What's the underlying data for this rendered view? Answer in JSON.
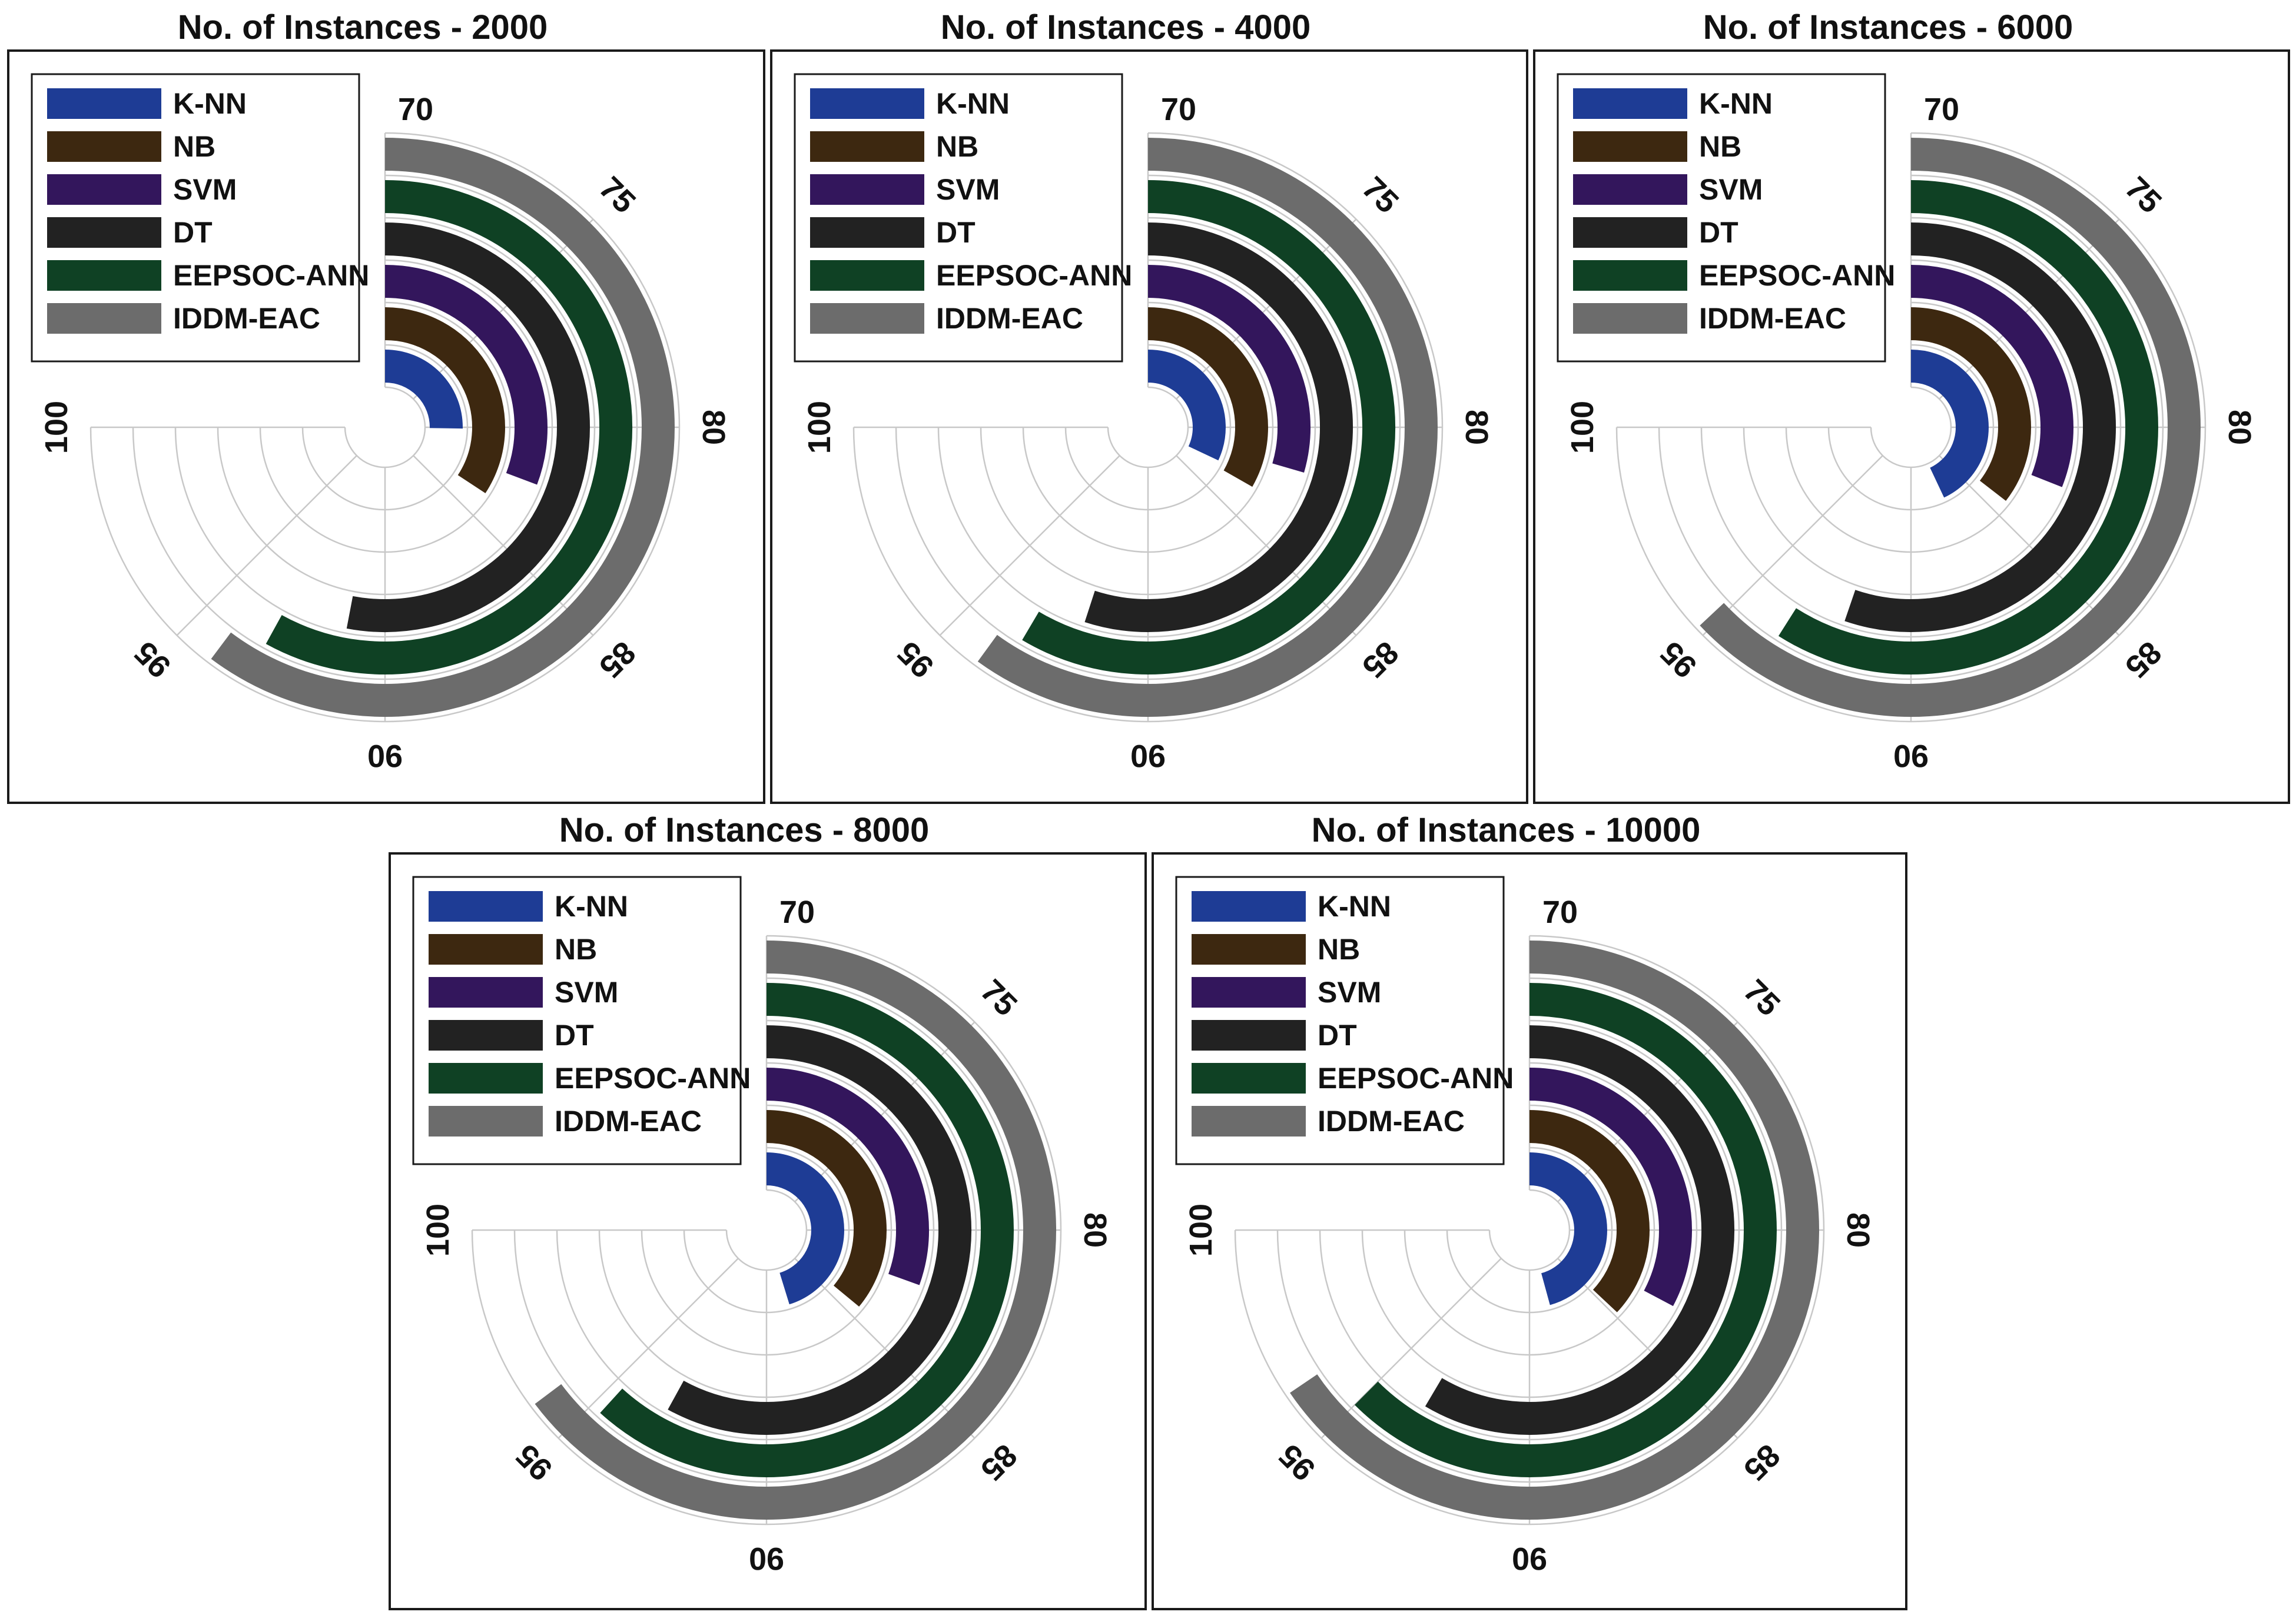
{
  "chart_data": [
    {
      "type": "radial-bar",
      "title": "No. of Instances - 2000",
      "axis_range": [
        70,
        100
      ],
      "ticks": [
        70,
        75,
        80,
        85,
        90,
        95,
        100
      ],
      "series": [
        {
          "name": "K-NN",
          "value": 80.1
        },
        {
          "name": "NB",
          "value": 83.7
        },
        {
          "name": "SVM",
          "value": 82.3
        },
        {
          "name": "DT",
          "value": 91.2
        },
        {
          "name": "EEPSOC-ANN",
          "value": 93.2
        },
        {
          "name": "IDDM-EAC",
          "value": 94.1
        }
      ]
    },
    {
      "type": "radial-bar",
      "title": "No. of Instances - 4000",
      "axis_range": [
        70,
        100
      ],
      "ticks": [
        70,
        75,
        80,
        85,
        90,
        95,
        100
      ],
      "series": [
        {
          "name": "K-NN",
          "value": 82.8
        },
        {
          "name": "NB",
          "value": 83.3
        },
        {
          "name": "SVM",
          "value": 81.8
        },
        {
          "name": "DT",
          "value": 92.0
        },
        {
          "name": "EEPSOC-ANN",
          "value": 93.4
        },
        {
          "name": "IDDM-EAC",
          "value": 94.0
        }
      ]
    },
    {
      "type": "radial-bar",
      "title": "No. of Instances - 6000",
      "axis_range": [
        70,
        100
      ],
      "ticks": [
        70,
        75,
        80,
        85,
        90,
        95,
        100
      ],
      "series": [
        {
          "name": "K-NN",
          "value": 87.2
        },
        {
          "name": "NB",
          "value": 84.2
        },
        {
          "name": "SVM",
          "value": 82.4
        },
        {
          "name": "DT",
          "value": 92.1
        },
        {
          "name": "EEPSOC-ANN",
          "value": 93.6
        },
        {
          "name": "IDDM-EAC",
          "value": 95.2
        }
      ]
    },
    {
      "type": "radial-bar",
      "title": "No. of Instances - 8000",
      "axis_range": [
        70,
        100
      ],
      "ticks": [
        70,
        75,
        80,
        85,
        90,
        95,
        100
      ],
      "series": [
        {
          "name": "K-NN",
          "value": 88.1
        },
        {
          "name": "NB",
          "value": 84.4
        },
        {
          "name": "SVM",
          "value": 82.2
        },
        {
          "name": "DT",
          "value": 93.2
        },
        {
          "name": "EEPSOC-ANN",
          "value": 94.7
        },
        {
          "name": "IDDM-EAC",
          "value": 95.9
        }
      ]
    },
    {
      "type": "radial-bar",
      "title": "No. of Instances - 10000",
      "axis_range": [
        70,
        100
      ],
      "ticks": [
        70,
        75,
        80,
        85,
        90,
        95,
        100
      ],
      "series": [
        {
          "name": "K-NN",
          "value": 88.3
        },
        {
          "name": "NB",
          "value": 84.8
        },
        {
          "name": "SVM",
          "value": 83.1
        },
        {
          "name": "DT",
          "value": 93.4
        },
        {
          "name": "EEPSOC-ANN",
          "value": 95.0
        },
        {
          "name": "IDDM-EAC",
          "value": 96.2
        }
      ]
    }
  ],
  "series_colors": {
    "K-NN": "#1e3c95",
    "NB": "#3d2810",
    "SVM": "#33165c",
    "DT": "#222222",
    "EEPSOC-ANN": "#0f4124",
    "IDDM-EAC": "#6c6c6c"
  }
}
